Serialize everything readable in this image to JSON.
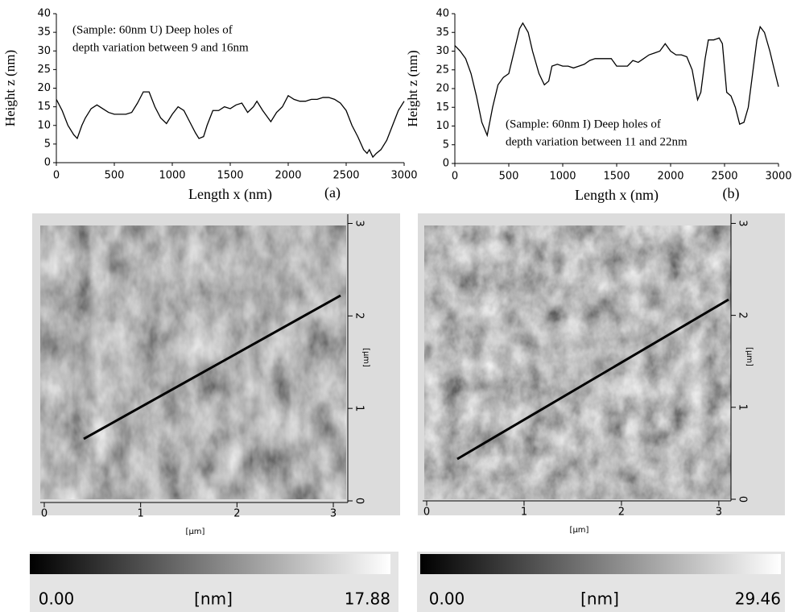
{
  "chart_data": [
    {
      "type": "line",
      "panel_label": "(a)",
      "xlabel": "Length x (nm)",
      "ylabel": "Height z (nm)",
      "annotation": [
        "(Sample: 60nm U) Deep holes of",
        "depth variation between 9 and 16nm"
      ],
      "xlim": [
        0,
        3000
      ],
      "ylim": [
        0,
        40
      ],
      "xticks": [
        0,
        500,
        1000,
        1500,
        2000,
        2500,
        3000
      ],
      "yticks": [
        0,
        5,
        10,
        15,
        20,
        25,
        30,
        35,
        40
      ],
      "x": [
        0,
        50,
        100,
        150,
        180,
        220,
        250,
        300,
        350,
        400,
        450,
        500,
        550,
        600,
        650,
        700,
        750,
        800,
        850,
        900,
        950,
        1000,
        1050,
        1100,
        1150,
        1200,
        1230,
        1270,
        1300,
        1350,
        1400,
        1450,
        1500,
        1550,
        1600,
        1650,
        1700,
        1730,
        1780,
        1850,
        1900,
        1950,
        2000,
        2050,
        2100,
        2150,
        2200,
        2250,
        2300,
        2350,
        2400,
        2450,
        2500,
        2550,
        2600,
        2650,
        2680,
        2700,
        2730,
        2760,
        2800,
        2850,
        2900,
        2950,
        3000
      ],
      "series": [
        {
          "color": "#000000",
          "values": [
            17,
            14,
            10,
            7.5,
            6.5,
            10,
            12,
            14.5,
            15.5,
            14.5,
            13.5,
            13,
            13,
            13,
            13.5,
            16,
            19,
            19,
            15,
            12,
            10.5,
            13,
            15,
            14,
            11,
            8,
            6.5,
            7,
            10,
            14,
            14,
            15,
            14.5,
            15.5,
            16,
            13.5,
            15,
            16.5,
            14,
            11,
            13.5,
            15,
            18,
            17,
            16.5,
            16.5,
            17,
            17,
            17.5,
            17.5,
            17,
            16,
            14,
            10,
            7,
            3.5,
            2.5,
            3.5,
            1.5,
            2.5,
            3.5,
            6,
            10,
            14,
            16.5
          ]
        }
      ]
    },
    {
      "type": "line",
      "panel_label": "(b)",
      "xlabel": "Length x (nm)",
      "ylabel": "Height z (nm)",
      "annotation": [
        "(Sample: 60nm I) Deep holes of",
        "depth variation between 11 and 22nm"
      ],
      "xlim": [
        0,
        3000
      ],
      "ylim": [
        0,
        40
      ],
      "xticks": [
        0,
        500,
        1000,
        1500,
        2000,
        2500,
        3000
      ],
      "yticks": [
        0,
        5,
        10,
        15,
        20,
        25,
        30,
        35,
        40
      ],
      "x": [
        0,
        50,
        100,
        150,
        200,
        250,
        300,
        350,
        400,
        450,
        500,
        550,
        600,
        630,
        680,
        720,
        780,
        830,
        870,
        900,
        950,
        1000,
        1050,
        1100,
        1150,
        1200,
        1250,
        1300,
        1350,
        1400,
        1450,
        1500,
        1550,
        1600,
        1650,
        1700,
        1750,
        1800,
        1850,
        1900,
        1950,
        2000,
        2050,
        2100,
        2150,
        2200,
        2250,
        2280,
        2320,
        2350,
        2400,
        2450,
        2480,
        2520,
        2560,
        2600,
        2640,
        2680,
        2720,
        2760,
        2800,
        2830,
        2870,
        2920,
        2970,
        3000
      ],
      "series": [
        {
          "color": "#000000",
          "values": [
            31.5,
            30,
            28,
            24,
            18,
            11,
            7.5,
            15,
            21,
            23,
            24,
            30,
            36,
            37.5,
            35,
            30,
            24,
            21,
            22,
            26,
            26.5,
            26,
            26,
            25.5,
            26,
            26.5,
            27.5,
            28,
            28,
            28,
            28,
            26,
            26,
            26,
            27.5,
            27,
            28,
            29,
            29.5,
            30,
            32,
            30,
            29,
            29,
            28.5,
            25,
            17,
            19,
            28,
            33,
            33,
            33.5,
            32,
            19,
            18,
            15,
            10.5,
            11,
            15,
            24,
            33,
            36.5,
            35,
            30,
            24,
            20.5
          ]
        }
      ]
    },
    {
      "type": "image",
      "xlabel": "[µm]",
      "ylabel": "[µm]",
      "xlim": [
        0,
        3.1
      ],
      "ylim": [
        0,
        3.1
      ],
      "xticks": [
        0,
        1,
        2,
        3
      ],
      "yticks": [
        0,
        1,
        2,
        3
      ],
      "colorbar": {
        "min": {
          "value": 0,
          "label": "0.00"
        },
        "max": 17.88,
        "unit": "[nm]"
      }
    },
    {
      "type": "image",
      "xlabel": "[µm]",
      "ylabel": "[µm]",
      "xlim": [
        0,
        3.1
      ],
      "ylim": [
        0,
        3.1
      ],
      "xticks": [
        0,
        1,
        2,
        3
      ],
      "yticks": [
        0,
        1,
        2,
        3
      ],
      "colorbar": {
        "min": {
          "value": 0,
          "label": "0.00"
        },
        "max": 29.46,
        "unit": "[nm]"
      }
    }
  ]
}
